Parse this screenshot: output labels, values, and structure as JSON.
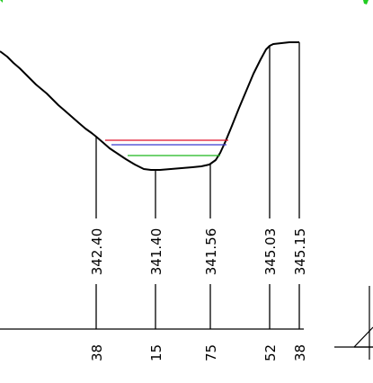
{
  "section": {
    "colors": {
      "ground": "#000000",
      "level_red": "#e0102a",
      "level_blue": "#3a3ad0",
      "level_green": "#1fb81f",
      "header_green": "#22cc22",
      "background": "#ffffff"
    },
    "elevations": [
      {
        "id": "e1",
        "label": "342.40"
      },
      {
        "id": "e2",
        "label": "341.40"
      },
      {
        "id": "e3",
        "label": "341.56"
      },
      {
        "id": "e4",
        "label": "345.03"
      },
      {
        "id": "e5",
        "label": "345.15"
      }
    ],
    "chainage_suffixes": [
      {
        "id": "c1",
        "label": "38"
      },
      {
        "id": "c2",
        "label": "15"
      },
      {
        "id": "c3",
        "label": "75"
      },
      {
        "id": "c4",
        "label": "52"
      },
      {
        "id": "c5",
        "label": "38"
      }
    ],
    "water_levels": [
      "level_red",
      "level_blue",
      "level_green"
    ],
    "level_symbol": "water-level-triangle-icon"
  }
}
